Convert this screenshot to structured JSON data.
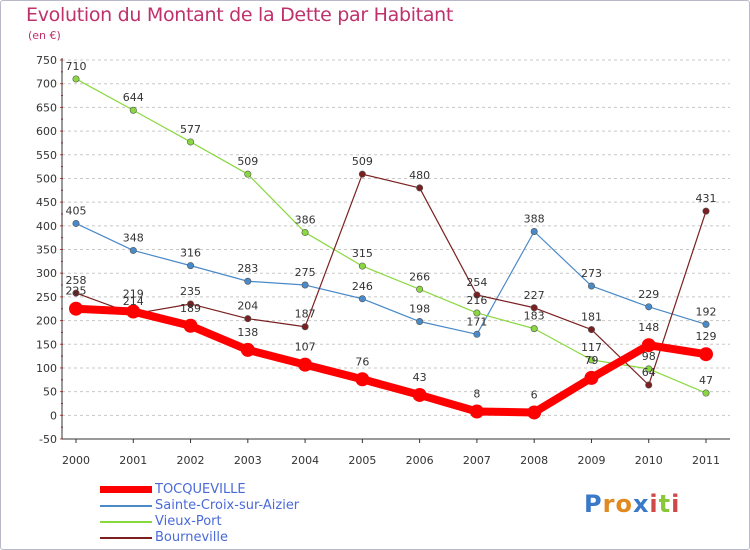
{
  "title": "Evolution du Montant de la Dette par Habitant",
  "subtitle": "(en €)",
  "logo_text": "Proxiti",
  "colors": {
    "title": "#c0306a",
    "axis": "#333333",
    "grid": "#c8c8c8",
    "tick_mark": "#d04040"
  },
  "chart_data": {
    "type": "line",
    "title": "Evolution du Montant de la Dette par Habitant",
    "subtitle": "(en €)",
    "categories": [
      "2000",
      "2001",
      "2002",
      "2003",
      "2004",
      "2005",
      "2006",
      "2007",
      "2008",
      "2009",
      "2010",
      "2011"
    ],
    "ylim": [
      -50,
      750
    ],
    "yticks": [
      -50,
      0,
      50,
      100,
      150,
      200,
      250,
      300,
      350,
      400,
      450,
      500,
      550,
      600,
      650,
      700,
      750
    ],
    "grid": "horizontal dashed",
    "legend_placement": "bottom-left",
    "series": [
      {
        "name": "TOCQUEVILLE",
        "color": "#ff0000",
        "emphasis": true,
        "values": [
          225,
          219,
          189,
          138,
          107,
          76,
          43,
          8,
          6,
          79,
          148,
          129
        ]
      },
      {
        "name": "Sainte-Croix-sur-Aizier",
        "color": "#4a8ac8",
        "values": [
          405,
          348,
          316,
          283,
          275,
          246,
          198,
          171,
          388,
          273,
          229,
          192
        ]
      },
      {
        "name": "Vieux-Port",
        "color": "#8ad840",
        "values": [
          710,
          644,
          577,
          509,
          386,
          315,
          266,
          216,
          183,
          117,
          98,
          47
        ]
      },
      {
        "name": "Bourneville",
        "color": "#7a2020",
        "values": [
          258,
          214,
          235,
          204,
          187,
          509,
          480,
          254,
          227,
          181,
          64,
          431
        ]
      }
    ]
  }
}
